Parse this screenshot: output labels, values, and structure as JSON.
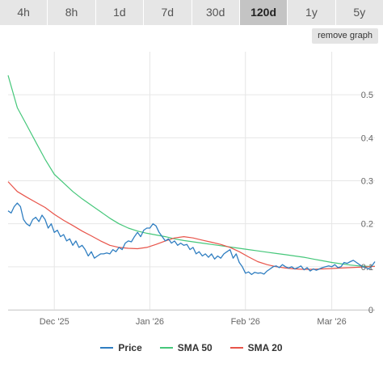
{
  "tabs": [
    {
      "label": "4h",
      "active": false
    },
    {
      "label": "8h",
      "active": false
    },
    {
      "label": "1d",
      "active": false
    },
    {
      "label": "7d",
      "active": false
    },
    {
      "label": "30d",
      "active": false
    },
    {
      "label": "120d",
      "active": true
    },
    {
      "label": "1y",
      "active": false
    },
    {
      "label": "5y",
      "active": false
    }
  ],
  "remove_graph_label": "remove graph",
  "legend": [
    {
      "label": "Price",
      "color": "#2f7ec1"
    },
    {
      "label": "SMA 50",
      "color": "#45c77a"
    },
    {
      "label": "SMA 20",
      "color": "#e8544a"
    }
  ],
  "chart_data": {
    "type": "line",
    "x_ticks": [
      {
        "label": "Dec '25",
        "day": 20
      },
      {
        "label": "Jan '26",
        "day": 51
      },
      {
        "label": "Feb '26",
        "day": 82
      },
      {
        "label": "Mar '26",
        "day": 110
      }
    ],
    "x_range": [
      5,
      124
    ],
    "ylim": [
      0,
      0.6
    ],
    "y_ticks": [
      {
        "label": "0",
        "value": 0
      },
      {
        "label": "0.1",
        "value": 0.1
      },
      {
        "label": "0.2",
        "value": 0.2
      },
      {
        "label": "0.3",
        "value": 0.3
      },
      {
        "label": "0.4",
        "value": 0.4
      },
      {
        "label": "0.5",
        "value": 0.5
      }
    ],
    "grid": true,
    "legend_position": "bottom-center",
    "series": [
      {
        "name": "Price",
        "color": "#2f7ec1",
        "x": [
          5,
          6,
          7,
          8,
          9,
          10,
          11,
          12,
          13,
          14,
          15,
          16,
          17,
          18,
          19,
          20,
          21,
          22,
          23,
          24,
          25,
          26,
          27,
          28,
          29,
          30,
          31,
          32,
          33,
          34,
          35,
          36,
          37,
          38,
          39,
          40,
          41,
          42,
          43,
          44,
          45,
          46,
          47,
          48,
          49,
          50,
          51,
          52,
          53,
          54,
          55,
          56,
          57,
          58,
          59,
          60,
          61,
          62,
          63,
          64,
          65,
          66,
          67,
          68,
          69,
          70,
          71,
          72,
          73,
          74,
          75,
          76,
          77,
          78,
          79,
          80,
          81,
          82,
          83,
          84,
          85,
          86,
          87,
          88,
          89,
          90,
          91,
          92,
          93,
          94,
          95,
          96,
          97,
          98,
          99,
          100,
          101,
          102,
          103,
          104,
          105,
          106,
          107,
          108,
          109,
          110,
          111,
          112,
          113,
          114,
          115,
          116,
          117,
          118,
          119,
          120,
          121,
          122,
          123,
          124
        ],
        "values": [
          0.23,
          0.225,
          0.24,
          0.248,
          0.24,
          0.21,
          0.2,
          0.195,
          0.21,
          0.215,
          0.205,
          0.22,
          0.21,
          0.19,
          0.2,
          0.18,
          0.185,
          0.17,
          0.175,
          0.16,
          0.165,
          0.15,
          0.16,
          0.145,
          0.15,
          0.14,
          0.125,
          0.135,
          0.12,
          0.125,
          0.13,
          0.13,
          0.132,
          0.13,
          0.14,
          0.135,
          0.145,
          0.14,
          0.155,
          0.16,
          0.158,
          0.17,
          0.18,
          0.17,
          0.185,
          0.19,
          0.19,
          0.2,
          0.195,
          0.18,
          0.17,
          0.16,
          0.165,
          0.155,
          0.16,
          0.15,
          0.155,
          0.15,
          0.152,
          0.14,
          0.145,
          0.13,
          0.135,
          0.125,
          0.13,
          0.122,
          0.13,
          0.118,
          0.125,
          0.12,
          0.13,
          0.135,
          0.14,
          0.12,
          0.13,
          0.11,
          0.1,
          0.085,
          0.088,
          0.082,
          0.087,
          0.085,
          0.086,
          0.083,
          0.09,
          0.095,
          0.1,
          0.102,
          0.098,
          0.105,
          0.1,
          0.097,
          0.1,
          0.095,
          0.098,
          0.102,
          0.093,
          0.098,
          0.09,
          0.095,
          0.092,
          0.095,
          0.098,
          0.1,
          0.102,
          0.1,
          0.105,
          0.098,
          0.1,
          0.11,
          0.108,
          0.112,
          0.115,
          0.11,
          0.105,
          0.1,
          0.098,
          0.095,
          0.102,
          0.112
        ],
        "point_labels_shown": false
      },
      {
        "name": "SMA 50",
        "color": "#45c77a",
        "x": [
          5,
          8,
          11,
          14,
          17,
          20,
          23,
          26,
          29,
          32,
          35,
          38,
          41,
          44,
          47,
          50,
          53,
          56,
          59,
          62,
          65,
          68,
          71,
          74,
          77,
          80,
          83,
          86,
          89,
          92,
          95,
          98,
          101,
          104,
          107,
          110,
          113,
          116,
          119,
          122,
          124
        ],
        "values": [
          0.545,
          0.47,
          0.43,
          0.39,
          0.35,
          0.315,
          0.295,
          0.275,
          0.258,
          0.243,
          0.228,
          0.213,
          0.2,
          0.19,
          0.183,
          0.178,
          0.174,
          0.17,
          0.165,
          0.161,
          0.158,
          0.155,
          0.152,
          0.149,
          0.146,
          0.143,
          0.14,
          0.137,
          0.134,
          0.131,
          0.128,
          0.125,
          0.122,
          0.118,
          0.114,
          0.11,
          0.107,
          0.104,
          0.102,
          0.101,
          0.101
        ]
      },
      {
        "name": "SMA 20",
        "color": "#e8544a",
        "x": [
          5,
          8,
          11,
          14,
          17,
          20,
          23,
          26,
          29,
          32,
          35,
          38,
          41,
          44,
          47,
          50,
          53,
          56,
          59,
          62,
          65,
          68,
          71,
          74,
          77,
          80,
          83,
          86,
          89,
          92,
          95,
          98,
          101,
          104,
          107,
          110,
          113,
          116,
          119,
          122,
          124
        ],
        "values": [
          0.298,
          0.275,
          0.262,
          0.25,
          0.238,
          0.222,
          0.208,
          0.196,
          0.183,
          0.172,
          0.16,
          0.15,
          0.145,
          0.143,
          0.142,
          0.145,
          0.152,
          0.16,
          0.167,
          0.17,
          0.167,
          0.162,
          0.157,
          0.152,
          0.145,
          0.135,
          0.123,
          0.112,
          0.105,
          0.1,
          0.097,
          0.095,
          0.094,
          0.094,
          0.095,
          0.096,
          0.097,
          0.098,
          0.099,
          0.1,
          0.101
        ]
      }
    ]
  }
}
